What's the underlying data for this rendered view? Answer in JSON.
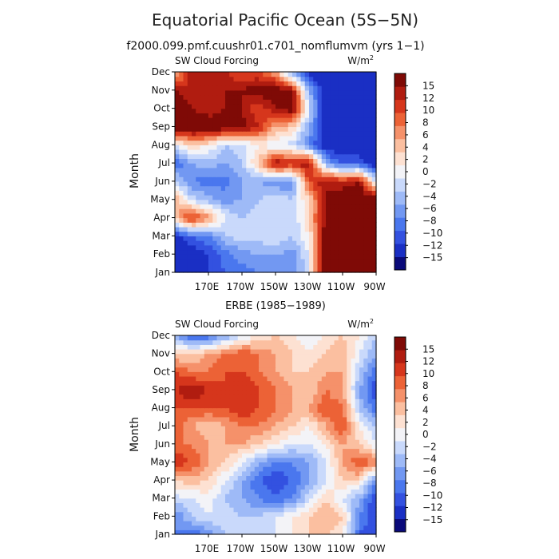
{
  "title": "Equatorial Pacific Ocean (5S−5N)",
  "subtitle": "f2000.099.pmf.cuushr01.c701_nomflumvm (yrs 1−1)",
  "chart_data": [
    {
      "type": "heatmap",
      "panel_title": "",
      "left_string": "SW Cloud Forcing",
      "right_string": "W/m",
      "right_superscript": "2",
      "ylabel": "Month",
      "months": [
        "Jan",
        "Feb",
        "Mar",
        "Apr",
        "May",
        "Jun",
        "Jul",
        "Aug",
        "Sep",
        "Oct",
        "Nov",
        "Dec"
      ],
      "x_ticks": [
        "170E",
        "170W",
        "150W",
        "130W",
        "110W",
        "90W"
      ],
      "x_range_deg_east": [
        150,
        270
      ],
      "x_tick_positions_deg_east": [
        170,
        190,
        210,
        230,
        250,
        270
      ],
      "levels": [
        -15,
        -12,
        -10,
        -8,
        -6,
        -4,
        -2,
        0,
        2,
        4,
        6,
        8,
        10,
        12,
        15
      ],
      "colorbar_labels": [
        "15",
        "12",
        "10",
        "8",
        "6",
        "4",
        "2",
        "0",
        "−2",
        "−4",
        "−6",
        "−8",
        "−10",
        "−12",
        "−15"
      ],
      "lon_samples_deg_east": [
        150,
        160,
        170,
        180,
        190,
        200,
        210,
        220,
        230,
        240,
        250,
        260,
        270
      ],
      "values": [
        [
          -14,
          -13,
          -12,
          -10,
          -9,
          -8,
          -8,
          -8,
          -2,
          15,
          15,
          15,
          15
        ],
        [
          -15,
          -14,
          -12,
          -9,
          -7,
          -6,
          -6,
          -7,
          -2,
          15,
          15,
          15,
          15
        ],
        [
          -13,
          -10,
          -8,
          -4,
          -3,
          -3,
          -2,
          -4,
          0,
          14,
          15,
          15,
          15
        ],
        [
          3,
          10,
          5,
          -2,
          -4,
          -3,
          -2,
          -4,
          2,
          13,
          15,
          15,
          15
        ],
        [
          4,
          -3,
          -5,
          -7,
          -6,
          -4,
          -2,
          -4,
          2,
          12,
          15,
          15,
          15
        ],
        [
          -3,
          -8,
          -9,
          -9,
          -6,
          -6,
          -8,
          -8,
          8,
          12,
          10,
          12,
          -2
        ],
        [
          -10,
          -6,
          -5,
          -6,
          -4,
          3,
          12,
          10,
          12,
          -6,
          -10,
          -10,
          -15
        ],
        [
          -2,
          2,
          0,
          -4,
          -3,
          0,
          -2,
          -3,
          -8,
          -14,
          -15,
          -15,
          -15
        ],
        [
          15,
          15,
          15,
          14,
          13,
          10,
          4,
          2,
          -6,
          -15,
          -15,
          -15,
          -15
        ],
        [
          15,
          12,
          10,
          12,
          12,
          8,
          12,
          14,
          -2,
          -15,
          -15,
          -15,
          -15
        ],
        [
          12,
          10,
          12,
          12,
          12,
          14,
          14,
          12,
          -6,
          -15,
          -15,
          -15,
          -15
        ],
        [
          2,
          12,
          12,
          10,
          8,
          8,
          4,
          -6,
          -14,
          -15,
          -15,
          -15,
          -12
        ]
      ]
    },
    {
      "type": "heatmap",
      "panel_title": "ERBE (1985−1989)",
      "left_string": "SW Cloud Forcing",
      "right_string": "W/m",
      "right_superscript": "2",
      "ylabel": "Month",
      "months": [
        "Jan",
        "Feb",
        "Mar",
        "Apr",
        "May",
        "Jun",
        "Jul",
        "Aug",
        "Sep",
        "Oct",
        "Nov",
        "Dec"
      ],
      "x_ticks": [
        "170E",
        "170W",
        "150W",
        "130W",
        "110W",
        "90W"
      ],
      "x_range_deg_east": [
        150,
        270
      ],
      "x_tick_positions_deg_east": [
        170,
        190,
        210,
        230,
        250,
        270
      ],
      "levels": [
        -15,
        -12,
        -10,
        -8,
        -6,
        -4,
        -2,
        0,
        2,
        4,
        6,
        8,
        10,
        12,
        15
      ],
      "colorbar_labels": [
        "15",
        "12",
        "10",
        "8",
        "6",
        "4",
        "2",
        "0",
        "−2",
        "−4",
        "−6",
        "−8",
        "−10",
        "−12",
        "−15"
      ],
      "lon_samples_deg_east": [
        150,
        160,
        170,
        180,
        190,
        200,
        210,
        220,
        230,
        240,
        250,
        260,
        270
      ],
      "values": [
        [
          -8,
          -10,
          -8,
          -4,
          -3,
          -2,
          -2,
          0,
          2,
          2,
          0,
          -10,
          -12
        ],
        [
          -8,
          -4,
          -2,
          -3,
          -4,
          -4,
          -2,
          0,
          2,
          4,
          2,
          -8,
          -12
        ],
        [
          -3,
          -2,
          -1,
          -4,
          -6,
          -8,
          -10,
          -8,
          -3,
          2,
          -2,
          -6,
          -12
        ],
        [
          2,
          3,
          2,
          -2,
          -6,
          -10,
          -12,
          -10,
          -6,
          -2,
          2,
          2,
          -8
        ],
        [
          10,
          8,
          4,
          2,
          -2,
          -6,
          -8,
          -8,
          -6,
          -2,
          4,
          8,
          6
        ],
        [
          6,
          6,
          4,
          4,
          4,
          2,
          0,
          -2,
          -2,
          0,
          4,
          2,
          -2
        ],
        [
          8,
          4,
          2,
          4,
          6,
          6,
          4,
          2,
          0,
          4,
          8,
          0,
          -4
        ],
        [
          8,
          8,
          8,
          8,
          10,
          8,
          6,
          4,
          4,
          8,
          6,
          -4,
          -10
        ],
        [
          10,
          12,
          10,
          8,
          10,
          8,
          6,
          4,
          2,
          6,
          4,
          -6,
          -12
        ],
        [
          8,
          6,
          6,
          8,
          8,
          6,
          4,
          2,
          2,
          4,
          4,
          -4,
          -10
        ],
        [
          2,
          2,
          4,
          6,
          8,
          6,
          4,
          2,
          0,
          2,
          4,
          -2,
          -6
        ],
        [
          -6,
          -10,
          -10,
          -6,
          -2,
          0,
          2,
          0,
          -2,
          0,
          2,
          0,
          -4
        ]
      ]
    }
  ]
}
